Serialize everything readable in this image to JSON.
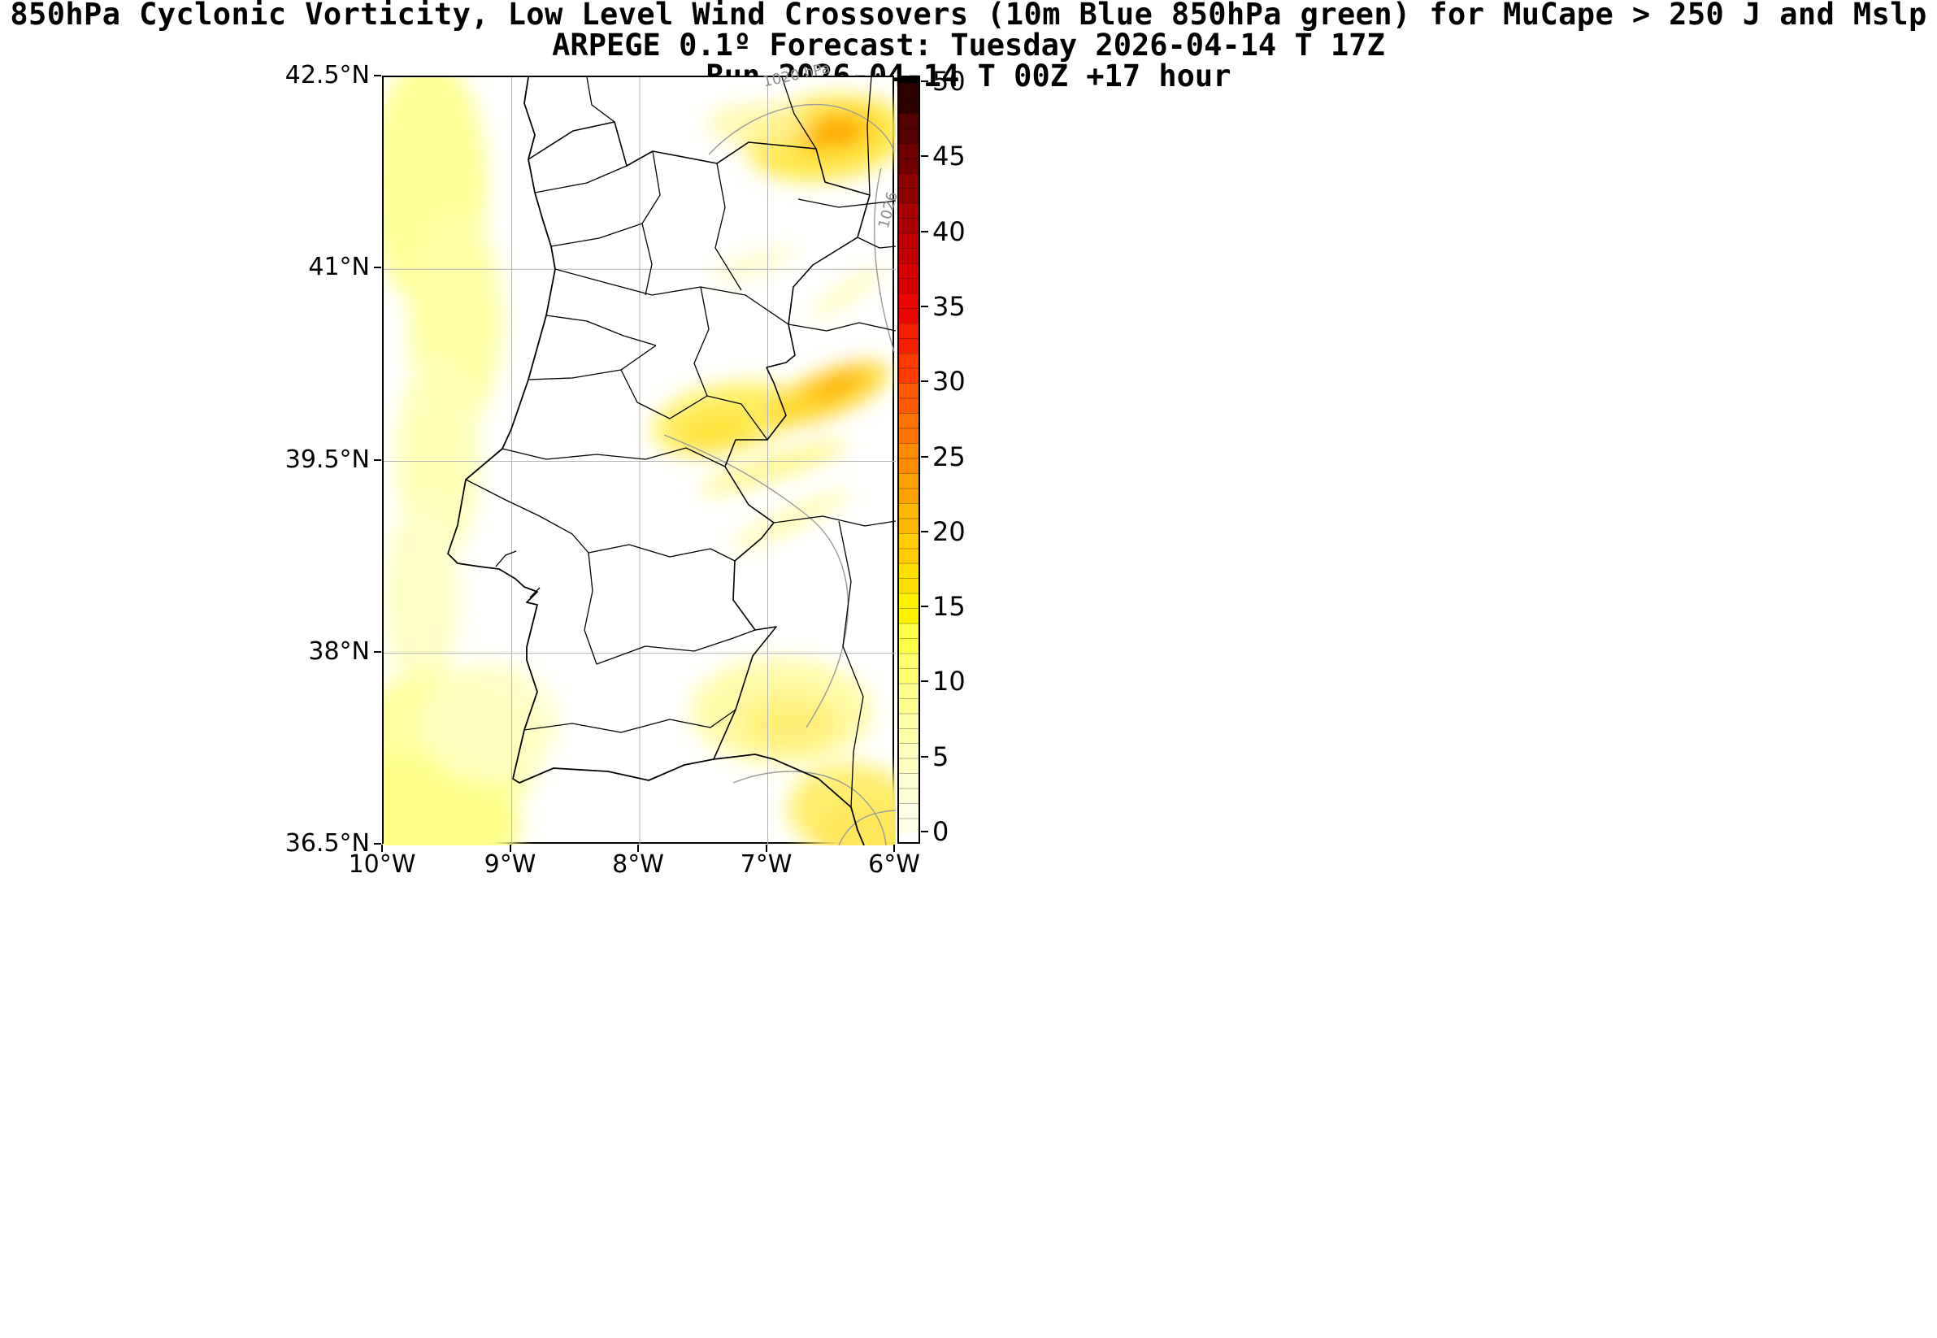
{
  "titles": {
    "suptitle": "850hPa Cyclonic Vorticity, Low Level Wind Crossovers (10m Blue 850hPa green) for MuCape > 250 J and Mslp",
    "model_line": "ARPEGE 0.1º Forecast: Tuesday 2026-04-14 T 17Z",
    "run_line": "Run 2026-04-14 T 00Z +17 hour"
  },
  "axes": {
    "y_tick_labels": [
      "42.5°N",
      "41°N",
      "39.5°N",
      "38°N",
      "36.5°N"
    ],
    "x_tick_labels": [
      "10°W",
      "9°W",
      "8°W",
      "7°W",
      "6°W"
    ]
  },
  "colorbar": {
    "tick_labels": [
      "0",
      "5",
      "10",
      "15",
      "20",
      "25",
      "30",
      "35",
      "40",
      "45",
      "50"
    ],
    "tick_values": [
      0,
      5,
      10,
      15,
      20,
      25,
      30,
      35,
      40,
      45,
      50
    ],
    "levels": [
      {
        "from": -0.9,
        "to": 0,
        "color": "#ffffff"
      },
      {
        "from": 0,
        "to": 2,
        "color": "#ffffe8"
      },
      {
        "from": 2,
        "to": 4,
        "color": "#ffffd5"
      },
      {
        "from": 4,
        "to": 6,
        "color": "#ffffc0"
      },
      {
        "from": 6,
        "to": 8,
        "color": "#ffffaa"
      },
      {
        "from": 8,
        "to": 10,
        "color": "#ffff90"
      },
      {
        "from": 10,
        "to": 12,
        "color": "#ffff70"
      },
      {
        "from": 12,
        "to": 14,
        "color": "#ffff45"
      },
      {
        "from": 14,
        "to": 16,
        "color": "#fff200"
      },
      {
        "from": 16,
        "to": 18,
        "color": "#ffdf00"
      },
      {
        "from": 18,
        "to": 20,
        "color": "#ffcc00"
      },
      {
        "from": 20,
        "to": 22,
        "color": "#ffb700"
      },
      {
        "from": 22,
        "to": 24,
        "color": "#ffa200"
      },
      {
        "from": 24,
        "to": 26,
        "color": "#ff8c00"
      },
      {
        "from": 26,
        "to": 28,
        "color": "#ff7300"
      },
      {
        "from": 28,
        "to": 30,
        "color": "#ff5a00"
      },
      {
        "from": 30,
        "to": 32,
        "color": "#ff3c00"
      },
      {
        "from": 32,
        "to": 34,
        "color": "#f81f00"
      },
      {
        "from": 34,
        "to": 36,
        "color": "#e90500"
      },
      {
        "from": 36,
        "to": 38,
        "color": "#d60000"
      },
      {
        "from": 38,
        "to": 40,
        "color": "#c10000"
      },
      {
        "from": 40,
        "to": 42,
        "color": "#a80000"
      },
      {
        "from": 42,
        "to": 44,
        "color": "#8d0000"
      },
      {
        "from": 44,
        "to": 46,
        "color": "#700000"
      },
      {
        "from": 46,
        "to": 48,
        "color": "#520000"
      },
      {
        "from": 48,
        "to": 50,
        "color": "#2e0000"
      },
      {
        "from": 50,
        "to": 50.5,
        "color": "#000000"
      }
    ]
  },
  "contour_labels": [
    {
      "text": "1020 hPa"
    },
    {
      "text": "1026"
    }
  ],
  "chart_data": {
    "type": "heatmap",
    "title": "850hPa Cyclonic Vorticity, Low Level Wind Crossovers (10m Blue 850hPa green) for MuCape > 250 J and Mslp",
    "model": "ARPEGE 0.1º",
    "valid_time": "Tuesday 2026-04-14 T 17Z",
    "run": "2026-04-14 T 00Z",
    "forecast_hour": 17,
    "map_region": "Portugal and western Spain",
    "x_axis": {
      "label": "longitude",
      "ticks": [
        "10°W",
        "9°W",
        "8°W",
        "7°W",
        "6°W"
      ],
      "range_deg": [
        -10,
        -6
      ]
    },
    "y_axis": {
      "label": "latitude",
      "ticks": [
        "42.5°N",
        "41°N",
        "39.5°N",
        "38°N",
        "36.5°N"
      ],
      "range_deg": [
        36.5,
        42.5
      ]
    },
    "grid": true,
    "legend_position": "right-colorbar",
    "colorbar": {
      "min": 0,
      "max": 50,
      "tick_step": 5,
      "ticks": [
        0,
        5,
        10,
        15,
        20,
        25,
        30,
        35,
        40,
        45,
        50
      ],
      "colors_low_to_high": [
        "#ffffff",
        "#ffffaa",
        "#ffff45",
        "#ffcc00",
        "#ff8c00",
        "#ff3c00",
        "#d60000",
        "#8d0000",
        "#2e0000",
        "#000000"
      ]
    },
    "vorticity_maxima": [
      {
        "lon": -6.6,
        "lat": 42.1,
        "value_approx": 18
      },
      {
        "lon": -6.4,
        "lat": 39.9,
        "value_approx": 12
      },
      {
        "lon": -7.5,
        "lat": 39.7,
        "value_approx": 10
      },
      {
        "lon": -9.6,
        "lat": 41.6,
        "value_approx": 7
      },
      {
        "lon": -9.7,
        "lat": 36.8,
        "value_approx": 7
      },
      {
        "lon": -6.9,
        "lat": 37.4,
        "value_approx": 6
      },
      {
        "lon": -6.3,
        "lat": 36.7,
        "value_approx": 8
      }
    ],
    "mslp_contour_labels_hpa": [
      "1020 hPa",
      "1026"
    ],
    "layout_colors": {
      "boundary_color": "#000000",
      "grid_color": "#b3b3b3",
      "mslp_contour_color": "#999999"
    }
  }
}
